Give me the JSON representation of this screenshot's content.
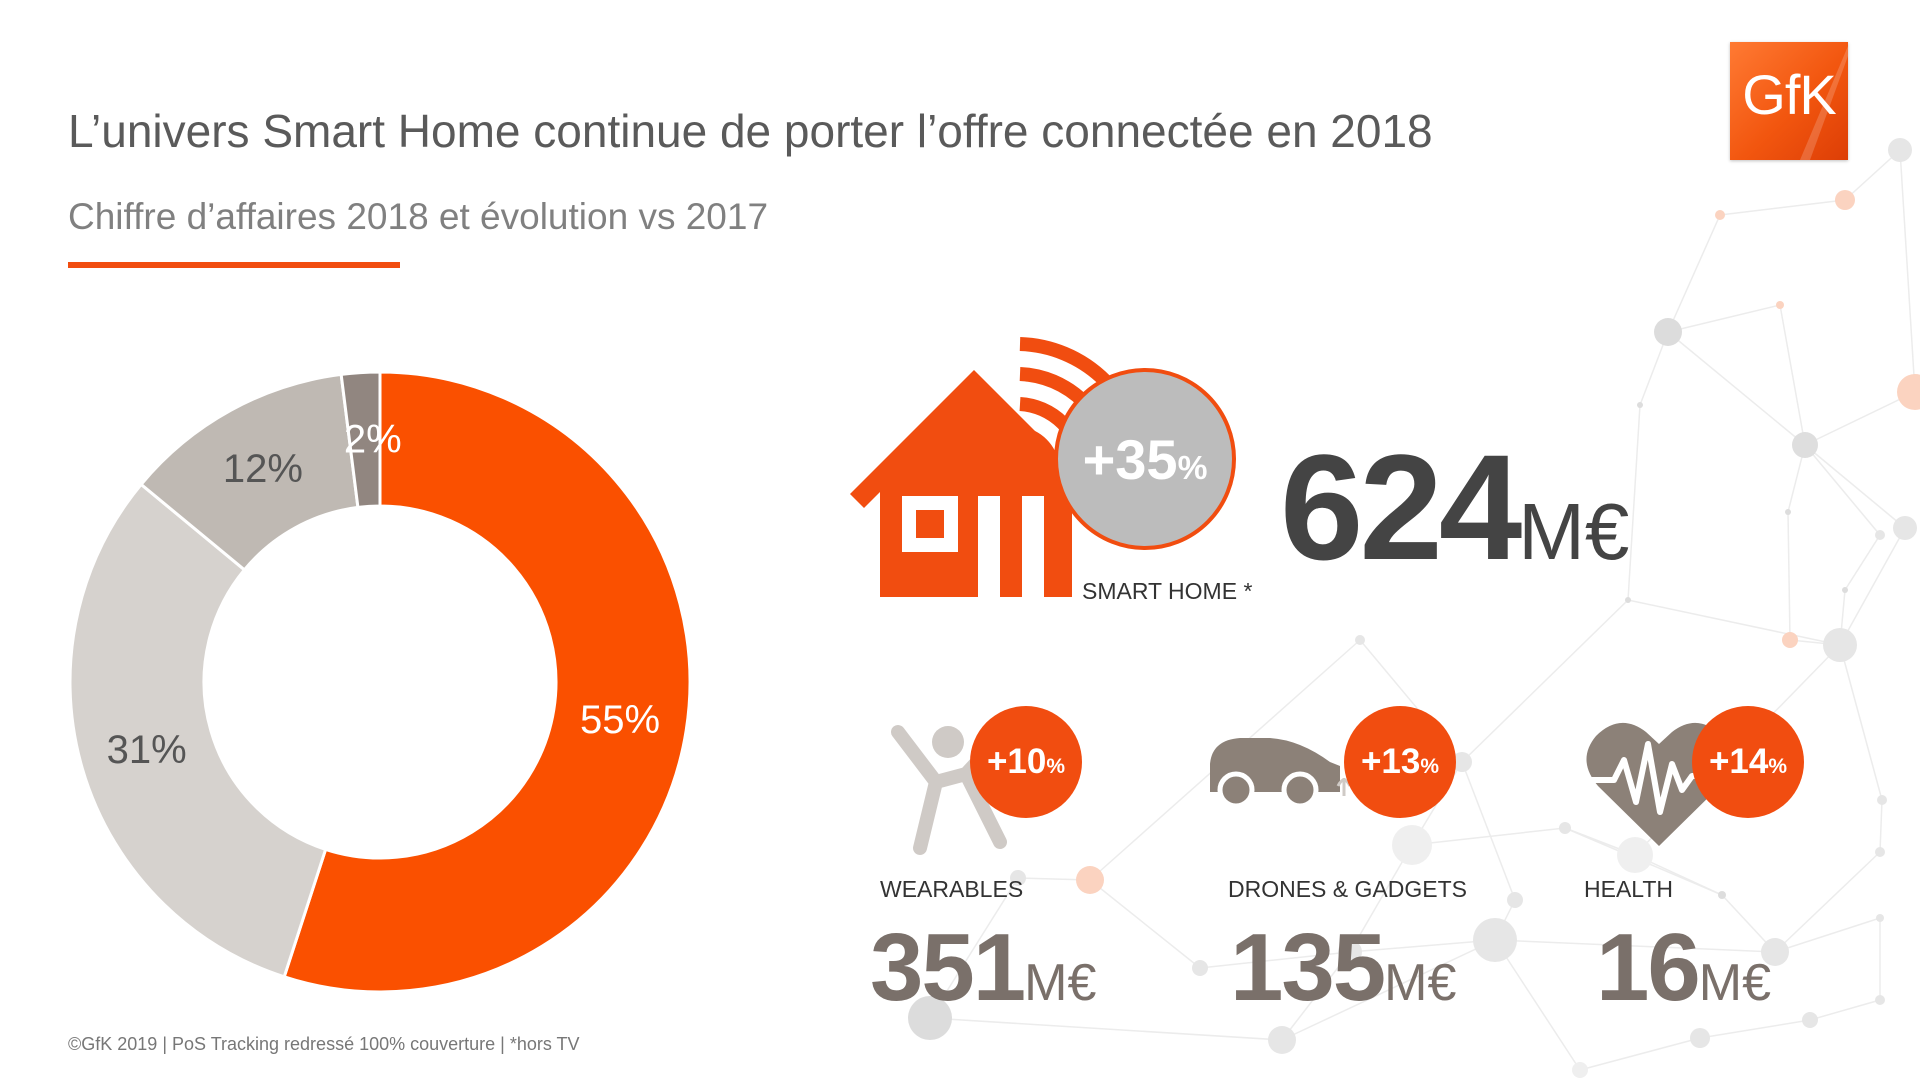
{
  "header": {
    "title": "L’univers Smart Home continue de porter l’offre connectée en 2018",
    "subtitle": "Chiffre d’affaires 2018 et évolution vs 2017"
  },
  "logo": {
    "text": "GfK",
    "color": "#f14d10"
  },
  "chart_data": {
    "type": "pie",
    "variant": "donut",
    "categories": [
      "",
      "",
      "",
      ""
    ],
    "values": [
      55,
      31,
      12,
      2
    ],
    "labels": [
      "55%",
      "31%",
      "12%",
      "2%"
    ],
    "colors": [
      "#fa5000",
      "#d6d2ce",
      "#bfb9b3",
      "#918680"
    ],
    "title": "",
    "legend": "none"
  },
  "kpis": {
    "main": {
      "label": "SMART HOME *",
      "growth": "+35",
      "growth_unit": "%",
      "value": "624",
      "unit": "M€",
      "icon": "smart-home-icon"
    },
    "items": [
      {
        "label": "WEARABLES",
        "growth": "+10",
        "growth_unit": "%",
        "value": "351",
        "unit": "M€",
        "icon": "wearables-person-icon"
      },
      {
        "label": "DRONES & GADGETS",
        "growth": "+13",
        "growth_unit": "%",
        "value": "135",
        "unit": "M€",
        "icon": "connected-car-icon"
      },
      {
        "label": "HEALTH",
        "growth": "+14",
        "growth_unit": "%",
        "value": "16",
        "unit": "M€",
        "icon": "heart-pulse-icon"
      }
    ]
  },
  "colors": {
    "accent": "#f14d10",
    "badge_grey": "#bcbcbc",
    "text_dark": "#444444",
    "text_brown": "#7a706a"
  },
  "footnote": "©GfK 2019 | PoS Tracking redressé 100% couverture | *hors TV"
}
